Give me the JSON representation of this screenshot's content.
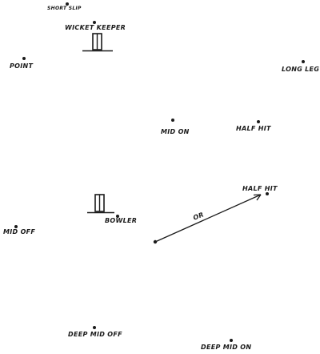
{
  "labels": {
    "short_slip": "SHORT SLIP",
    "wicket_keeper": "WICKET KEEPER",
    "point": "POINT",
    "long_leg": "LONG LEG",
    "mid_on": "MID ON",
    "half_hit_upper": "HALF HIT",
    "half_hit_lower": "HALF HIT",
    "bowler": "BOWLER",
    "mid_off": "MID OFF",
    "or": "OR",
    "deep_mid_off": "DEEP MID OFF",
    "deep_mid_on": "DEEP MID ON"
  },
  "colors": {
    "ink": "#1a1a1a",
    "background": "#ffffff"
  },
  "icons": {
    "wicket": "stumps-icon",
    "direction": "arrow-icon"
  }
}
